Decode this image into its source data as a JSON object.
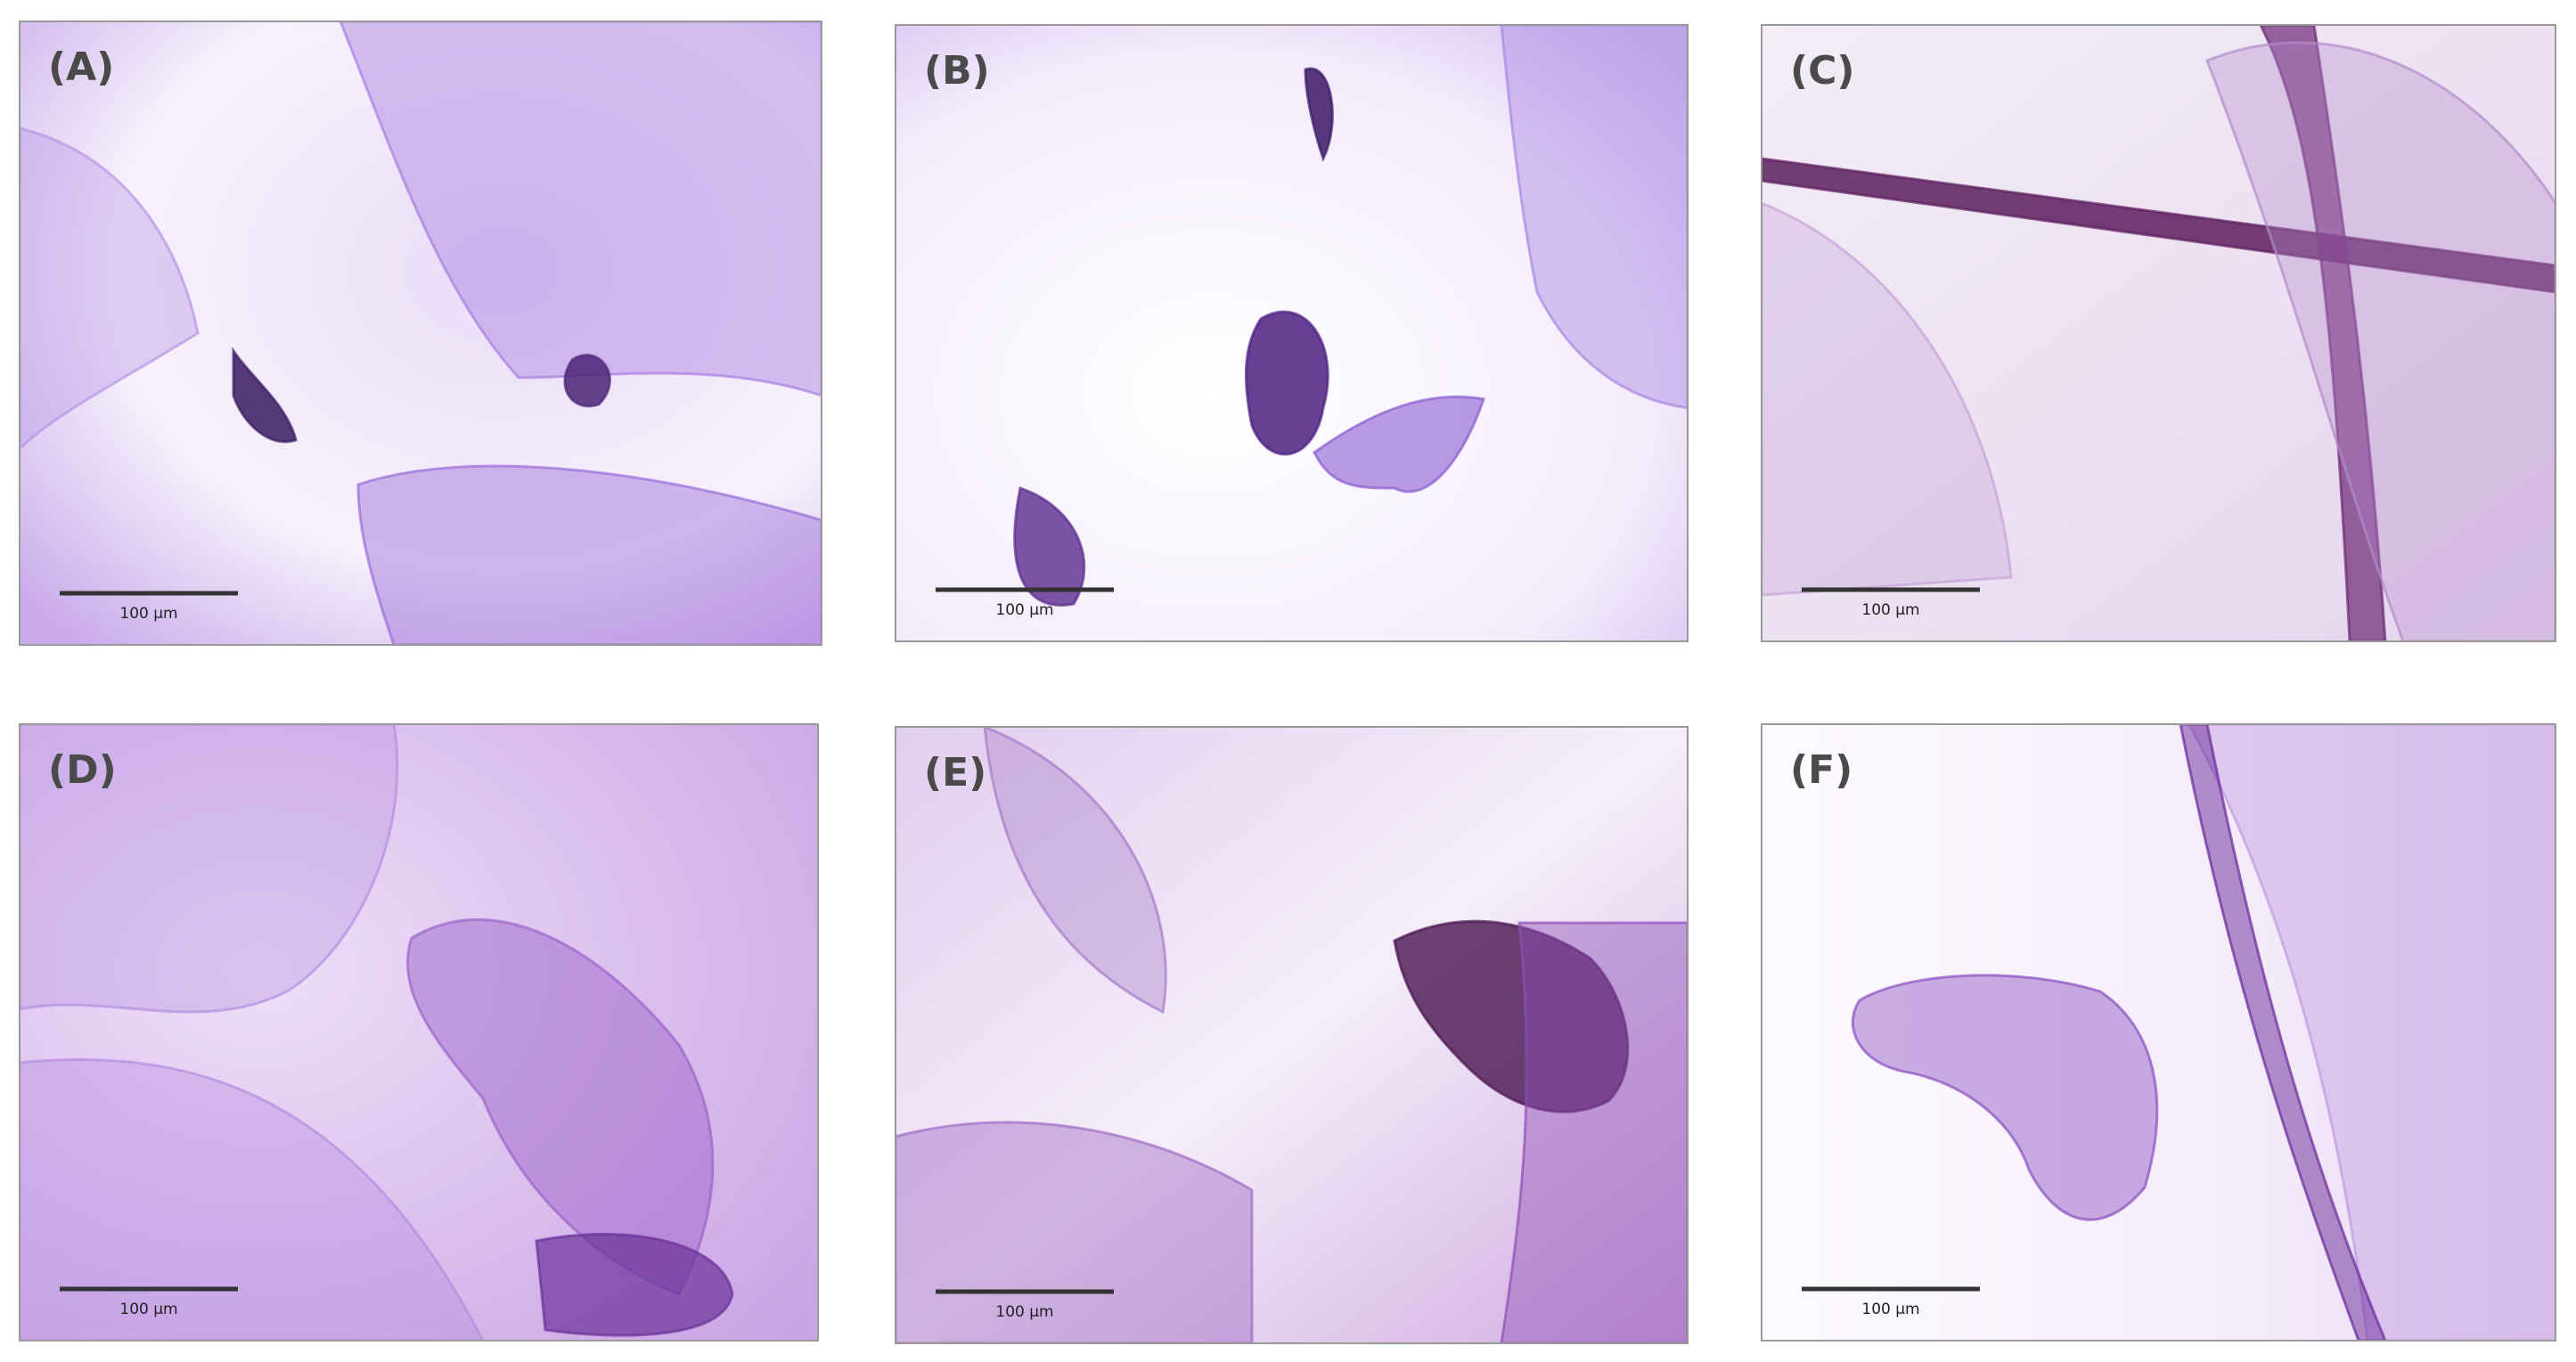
{
  "panels": [
    {
      "label": "(A)",
      "scale_bar": "100 µm"
    },
    {
      "label": "(B)",
      "scale_bar": "100 µm"
    },
    {
      "label": "(C)",
      "scale_bar": "100 µm"
    },
    {
      "label": "(D)",
      "scale_bar": "100 µm"
    },
    {
      "label": "(E)",
      "scale_bar": "100 µm"
    },
    {
      "label": "(F)",
      "scale_bar": "100 µm"
    }
  ]
}
